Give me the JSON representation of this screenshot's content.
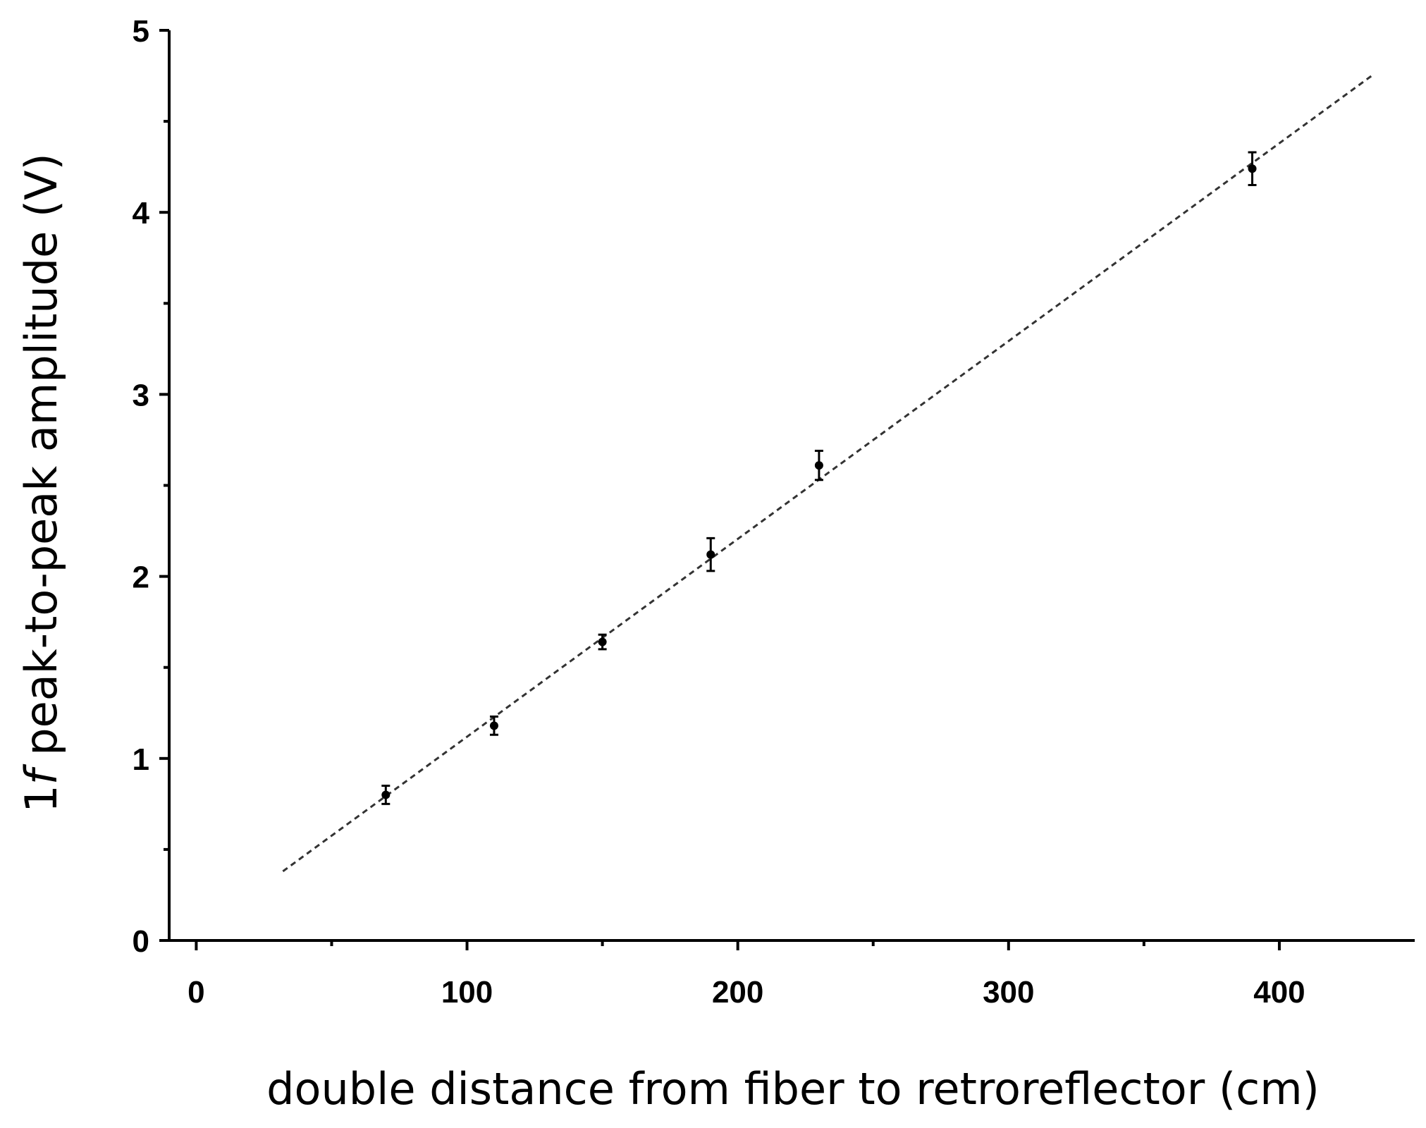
{
  "chart_data": {
    "type": "scatter",
    "title": "",
    "xlabel": "double distance from fiber to retroreflector  (cm)",
    "ylabel_prefix": "1",
    "ylabel_italic": "f",
    "ylabel_suffix": " peak-to-peak amplitude (V)",
    "xlim": [
      -10,
      450
    ],
    "ylim": [
      0,
      5
    ],
    "x_ticks": [
      0,
      100,
      200,
      300,
      400
    ],
    "x_ticks_labels": [
      "0",
      "100",
      "200",
      "300",
      "400"
    ],
    "x_minor_ticks": [
      50,
      150,
      250,
      350
    ],
    "y_ticks": [
      0,
      1,
      2,
      3,
      4,
      5
    ],
    "y_ticks_labels": [
      "0",
      "1",
      "2",
      "3",
      "4",
      "5"
    ],
    "y_minor_ticks": [
      0.5,
      1.5,
      2.5,
      3.5,
      4.5
    ],
    "points": [
      {
        "x": 70,
        "y": 0.8,
        "err": 0.05
      },
      {
        "x": 110,
        "y": 1.18,
        "err": 0.05
      },
      {
        "x": 150,
        "y": 1.64,
        "err": 0.04
      },
      {
        "x": 190,
        "y": 2.12,
        "err": 0.09
      },
      {
        "x": 230,
        "y": 2.61,
        "err": 0.08
      },
      {
        "x": 390,
        "y": 4.24,
        "err": 0.09
      }
    ],
    "fit_line": {
      "x": [
        32,
        435
      ],
      "y": [
        0.38,
        4.76
      ],
      "style": "dashed"
    },
    "grid": false,
    "legend": "none"
  }
}
